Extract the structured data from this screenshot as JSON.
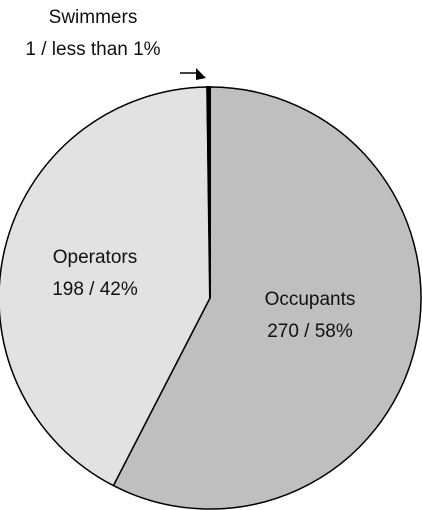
{
  "chart_data": {
    "type": "pie",
    "categories": [
      "Occupants",
      "Operators",
      "Swimmers"
    ],
    "values": [
      270,
      198,
      1
    ],
    "value_labels": [
      "270 / 58%",
      "198 / 42%",
      "1 / less than 1%"
    ],
    "colors": [
      "#bfbfbf",
      "#e2e2e2",
      "#000000"
    ]
  }
}
